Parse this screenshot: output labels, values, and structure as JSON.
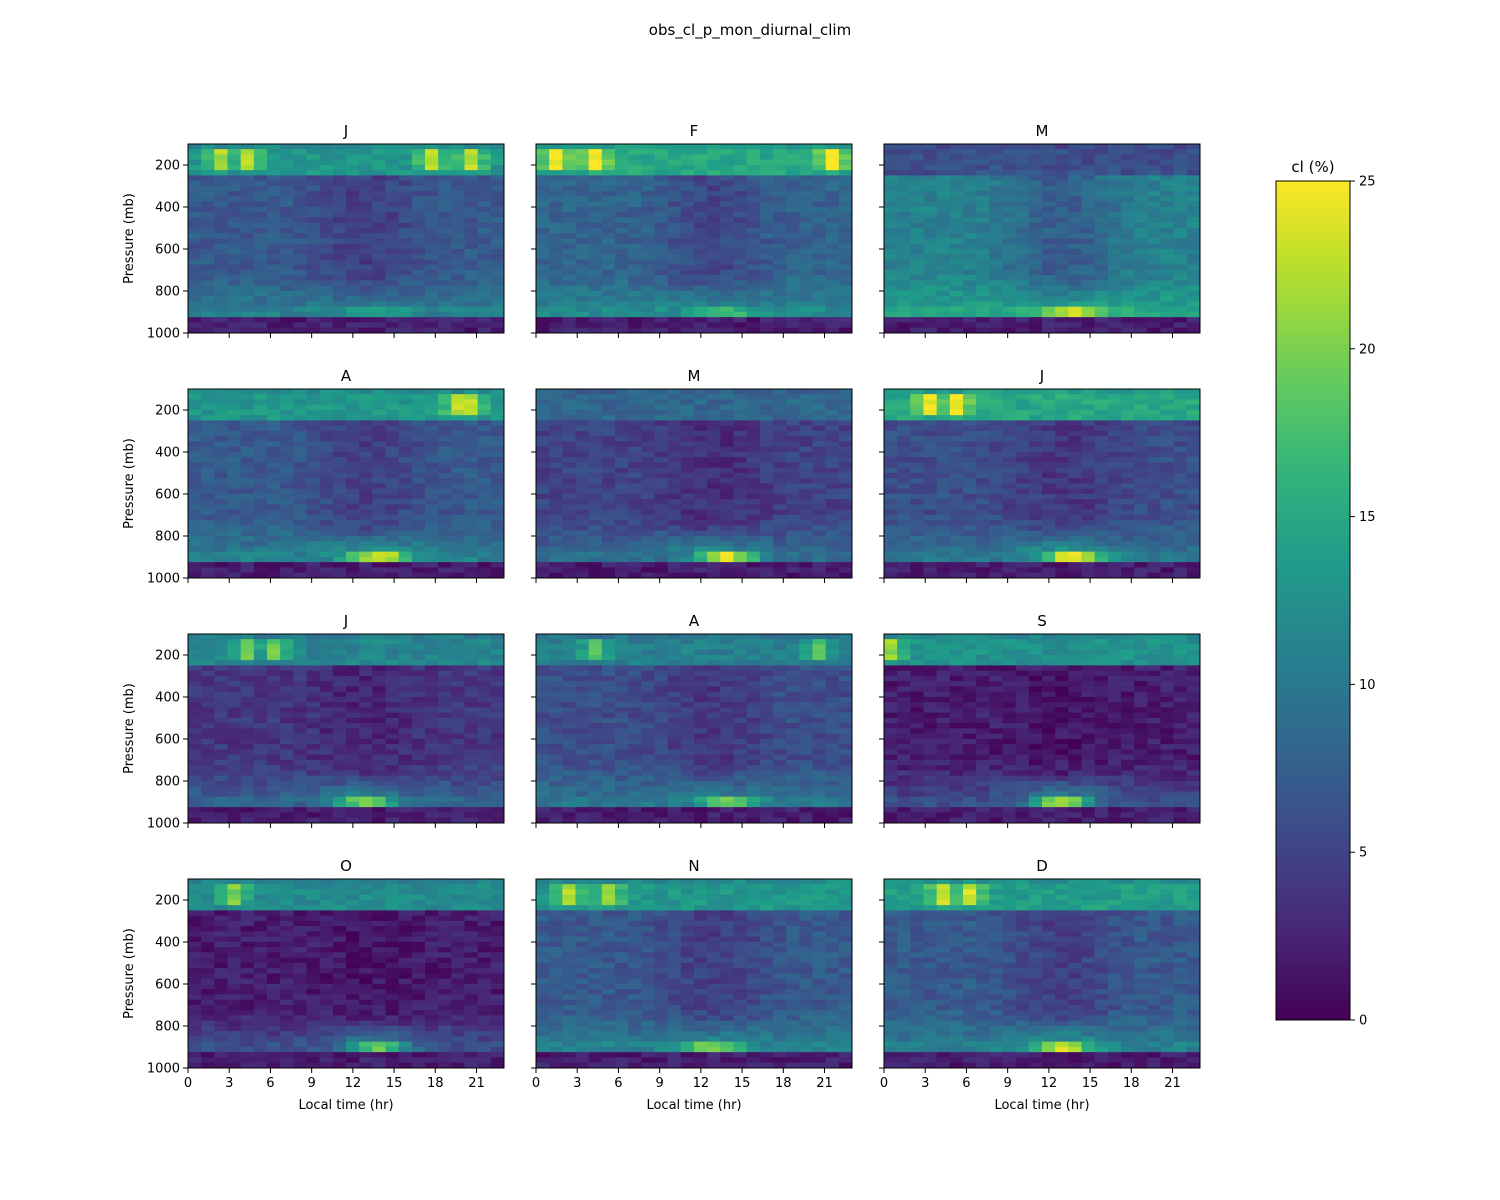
{
  "figure": {
    "title": "obs_cl_p_mon_diurnal_clim"
  },
  "chart_data": {
    "type": "heatmap",
    "title": "obs_cl_p_mon_diurnal_clim",
    "panels": [
      "J",
      "F",
      "M",
      "A",
      "M",
      "J",
      "J",
      "A",
      "S",
      "O",
      "N",
      "D"
    ],
    "xlabel": "Local time (hr)",
    "ylabel": "Pressure (mb)",
    "xlim": [
      0,
      23
    ],
    "ylim": [
      1000,
      100
    ],
    "xticks": [
      0,
      3,
      6,
      9,
      12,
      15,
      18,
      21
    ],
    "yticks": [
      200,
      400,
      600,
      800,
      1000
    ],
    "colormap": "viridis",
    "colorbar": {
      "label": "cl (%)",
      "range": [
        0,
        25
      ],
      "ticks": [
        0,
        5,
        10,
        15,
        20,
        25
      ]
    },
    "pressure_levels": [
      112,
      137,
      162,
      187,
      212,
      237,
      262,
      287,
      312,
      337,
      362,
      387,
      412,
      437,
      462,
      487,
      512,
      537,
      562,
      587,
      612,
      637,
      662,
      687,
      712,
      737,
      762,
      787,
      812,
      837,
      862,
      887,
      912,
      937,
      962,
      987
    ],
    "hours": [
      0,
      1,
      2,
      3,
      4,
      5,
      6,
      7,
      8,
      9,
      10,
      11,
      12,
      13,
      14,
      15,
      16,
      17,
      18,
      19,
      20,
      21,
      22,
      23
    ],
    "monthly_profile_features": {
      "J": {
        "upper_max": 22,
        "upper_peak_hours": [
          2,
          4,
          18,
          21
        ],
        "mid": 7,
        "low_peak": 15,
        "low_peak_hour": 14
      },
      "F": {
        "upper_max": 25,
        "upper_peak_hours": [
          1,
          4,
          22
        ],
        "mid": 8,
        "low_peak": 17,
        "low_peak_hour": 14
      },
      "M": {
        "upper_max": 10,
        "upper_peak_hours": [],
        "mid": 11,
        "low_peak": 23,
        "low_peak_hour": 14
      },
      "A": {
        "upper_max": 22,
        "upper_peak_hours": [
          20,
          21
        ],
        "mid": 7,
        "low_peak": 24,
        "low_peak_hour": 14
      },
      "M2": {
        "upper_max": 14,
        "upper_peak_hours": [],
        "mid": 5,
        "low_peak": 24,
        "low_peak_hour": 14
      },
      "J2": {
        "upper_max": 25,
        "upper_peak_hours": [
          3,
          5
        ],
        "mid": 6,
        "low_peak": 25,
        "low_peak_hour": 14
      },
      "J3": {
        "upper_max": 19,
        "upper_peak_hours": [
          4,
          6
        ],
        "mid": 4,
        "low_peak": 20,
        "low_peak_hour": 13
      },
      "A2": {
        "upper_max": 18,
        "upper_peak_hours": [
          4,
          21
        ],
        "mid": 6,
        "low_peak": 19,
        "low_peak_hour": 14
      },
      "S": {
        "upper_max": 21,
        "upper_peak_hours": [
          0
        ],
        "mid": 2,
        "low_peak": 22,
        "low_peak_hour": 13
      },
      "O": {
        "upper_max": 20,
        "upper_peak_hours": [
          3
        ],
        "mid": 2,
        "low_peak": 19,
        "low_peak_hour": 14
      },
      "N": {
        "upper_max": 22,
        "upper_peak_hours": [
          2,
          5
        ],
        "mid": 7,
        "low_peak": 20,
        "low_peak_hour": 13
      },
      "D": {
        "upper_max": 23,
        "upper_peak_hours": [
          4,
          6
        ],
        "mid": 7,
        "low_peak": 23,
        "low_peak_hour": 13
      }
    }
  }
}
